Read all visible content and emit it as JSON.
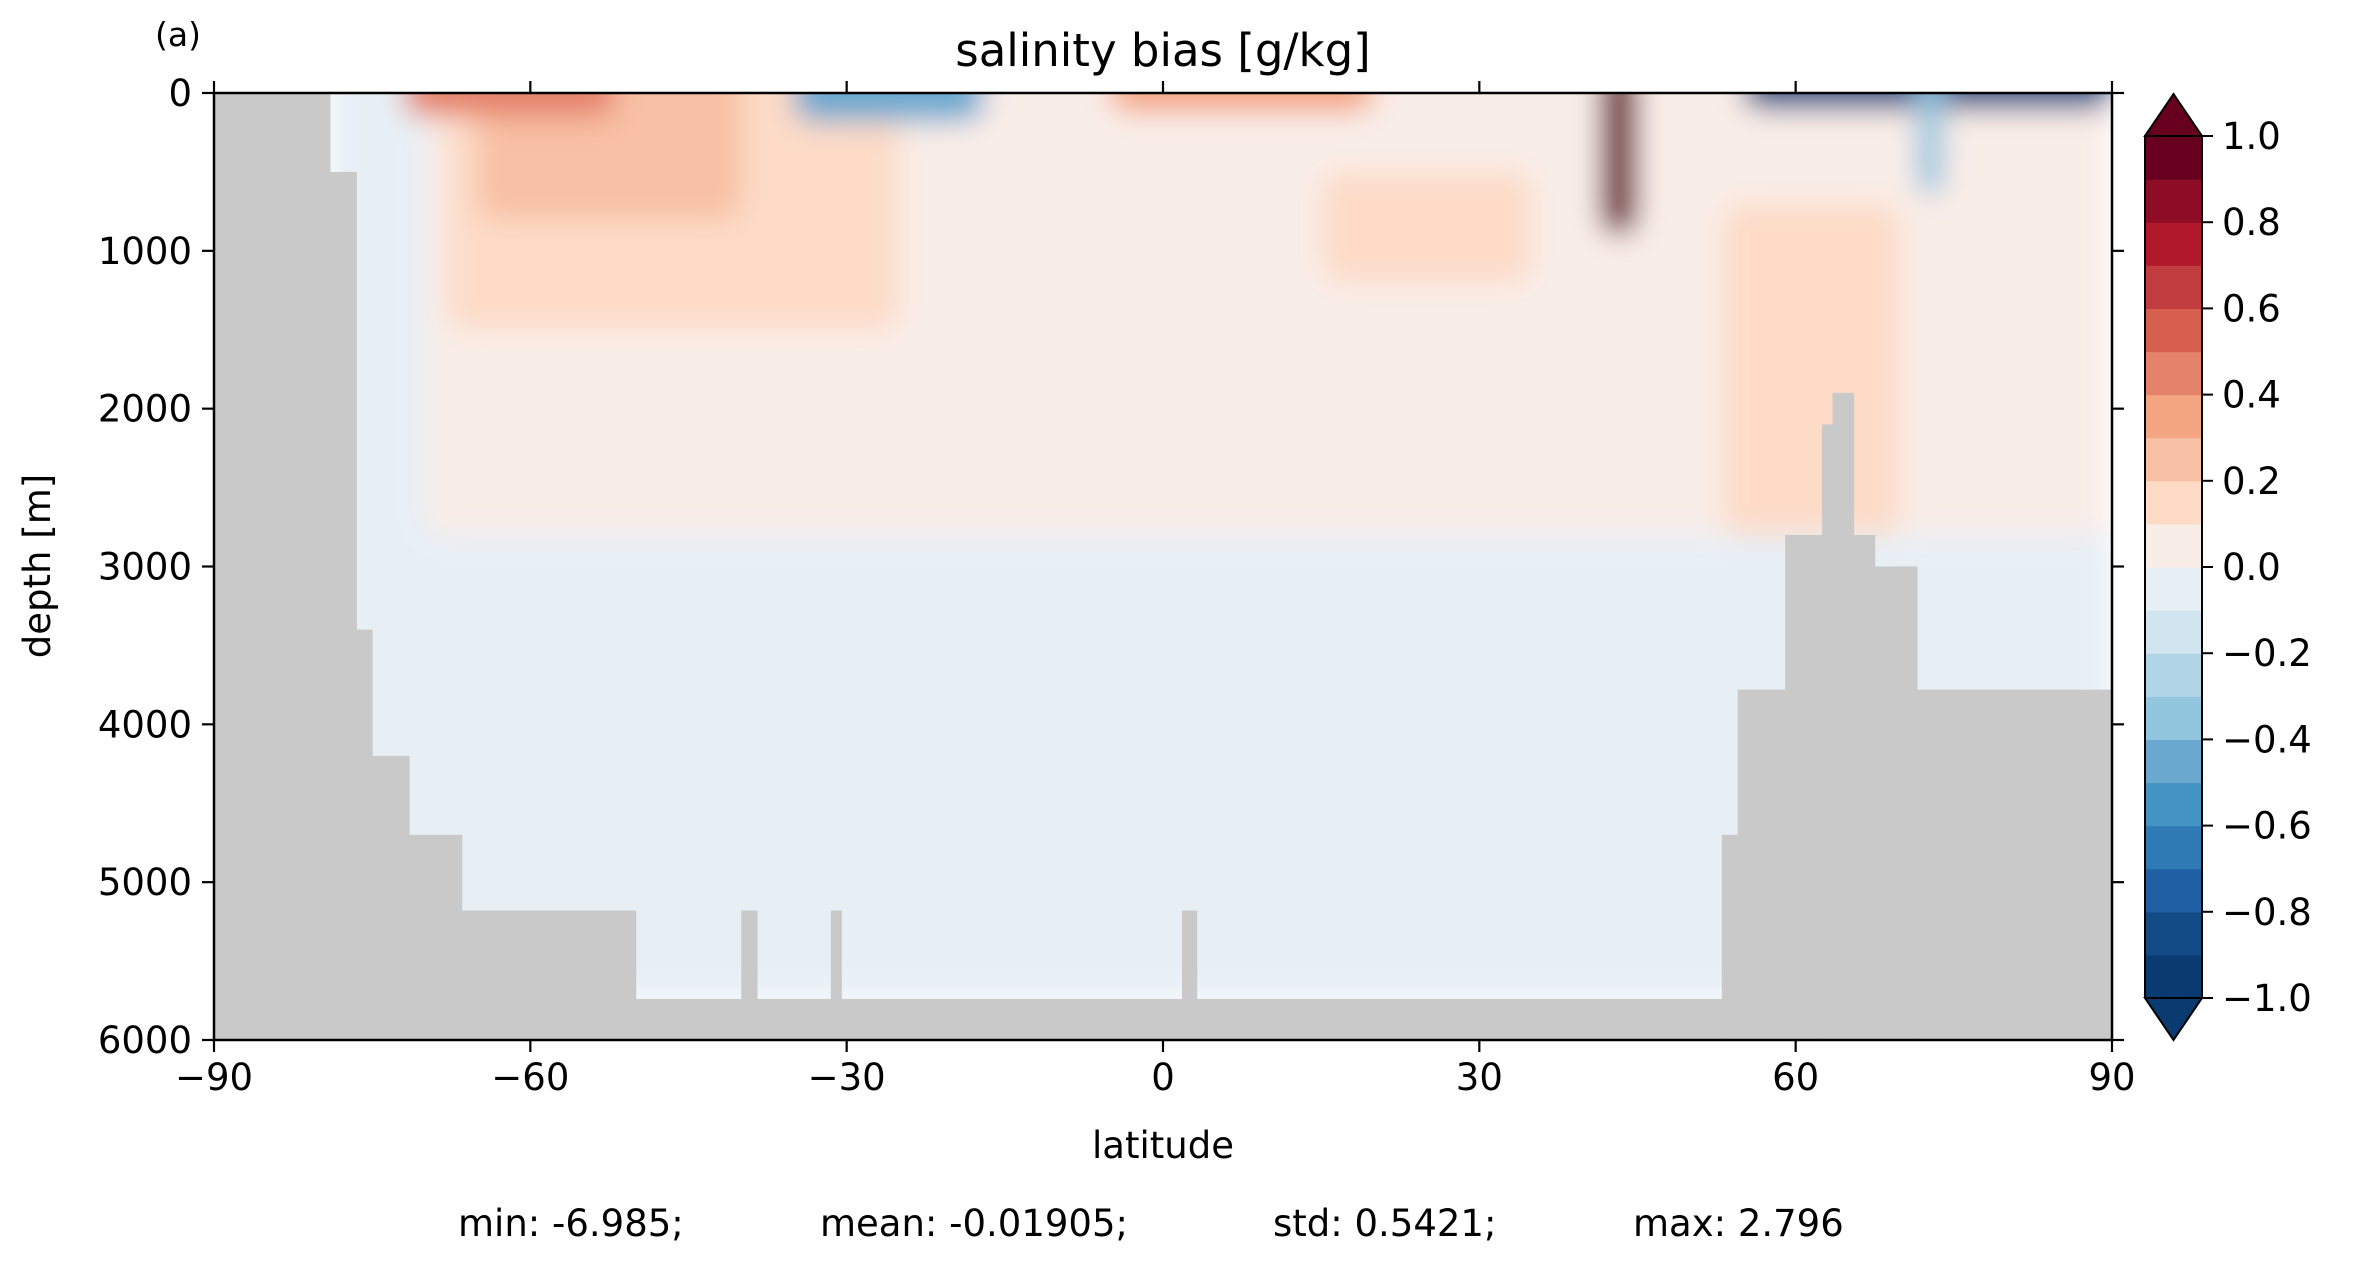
{
  "chart_data": {
    "type": "heatmap",
    "panel_label": "(a)",
    "title": "salinity bias [g/kg]",
    "xlabel": "latitude",
    "ylabel": "depth [m]",
    "xlim": [
      -90,
      90
    ],
    "ylim": [
      6000,
      0
    ],
    "x_ticks": [
      -90,
      -60,
      -30,
      0,
      30,
      60,
      90
    ],
    "x_tick_labels": [
      "−90",
      "−60",
      "−30",
      "0",
      "30",
      "60",
      "90"
    ],
    "y_ticks": [
      0,
      1000,
      2000,
      3000,
      4000,
      5000,
      6000
    ],
    "y_tick_labels": [
      "0",
      "1000",
      "2000",
      "3000",
      "4000",
      "5000",
      "6000"
    ],
    "colorbar": {
      "colormap": "RdBu_r",
      "vmin": -1.0,
      "vmax": 1.0,
      "extend": "both",
      "levels": [
        -1.0,
        -0.9,
        -0.8,
        -0.7,
        -0.6,
        -0.5,
        -0.4,
        -0.3,
        -0.2,
        -0.1,
        0.0,
        0.1,
        0.2,
        0.3,
        0.4,
        0.5,
        0.6,
        0.7,
        0.8,
        0.9,
        1.0
      ],
      "tick_values": [
        -1.0,
        -0.8,
        -0.6,
        -0.4,
        -0.2,
        0.0,
        0.2,
        0.4,
        0.6,
        0.8,
        1.0
      ],
      "tick_labels": [
        "−1.0",
        "−0.8",
        "−0.6",
        "−0.4",
        "−0.2",
        "0.0",
        "0.2",
        "0.4",
        "0.6",
        "0.8",
        "1.0"
      ],
      "colors": [
        "#0a3b70",
        "#134b87",
        "#1f5fa3",
        "#2f79b5",
        "#4393c3",
        "#6aa8d0",
        "#92c5de",
        "#b1d5e7",
        "#d1e5f0",
        "#e7eff5",
        "#f9ede8",
        "#fddbc7",
        "#f8c0a4",
        "#f4a582",
        "#e5826a",
        "#d6604d",
        "#c13c3f",
        "#b2182b",
        "#8e0c25",
        "#67001f"
      ]
    },
    "land_mask": {
      "color": "#c9c9c9",
      "segments": [
        {
          "lat": [
            -90,
            -79
          ],
          "top_depth": 0
        },
        {
          "lat": [
            -79,
            -76.5
          ],
          "top_depth": 500
        },
        {
          "lat": [
            -76.5,
            -75
          ],
          "top_depth": 3400
        },
        {
          "lat": [
            -75,
            -71.5
          ],
          "top_depth": 4200
        },
        {
          "lat": [
            -71.5,
            -66.5
          ],
          "top_depth": 4700
        },
        {
          "lat": [
            -66.5,
            -50
          ],
          "top_depth": 5180
        },
        {
          "lat": [
            -50,
            53
          ],
          "top_depth": 5740
        },
        {
          "lat": [
            53,
            54.5
          ],
          "top_depth": 4700
        },
        {
          "lat": [
            54.5,
            59
          ],
          "top_depth": 3780
        },
        {
          "lat": [
            59,
            62.5
          ],
          "top_depth": 2800
        },
        {
          "lat": [
            62.5,
            63.5
          ],
          "top_depth": 2100
        },
        {
          "lat": [
            63.5,
            65.5
          ],
          "top_depth": 1900
        },
        {
          "lat": [
            65.5,
            67.5
          ],
          "top_depth": 2800
        },
        {
          "lat": [
            67.5,
            71.5
          ],
          "top_depth": 3000
        },
        {
          "lat": [
            71.5,
            90
          ],
          "top_depth": 3780
        }
      ],
      "ridges": [
        {
          "lat": [
            -40,
            -38.5
          ],
          "top_depth": 5180
        },
        {
          "lat": [
            -31.5,
            -30.5
          ],
          "top_depth": 5180
        },
        {
          "lat": [
            1.8,
            3.2
          ],
          "top_depth": 5180
        }
      ]
    },
    "bias_regions": [
      {
        "value": -0.05,
        "lat": [
          -79,
          90
        ],
        "depth": [
          0,
          5740
        ],
        "note": "background"
      },
      {
        "value": 0.05,
        "lat": [
          -70,
          90
        ],
        "depth": [
          0,
          2800
        ]
      },
      {
        "value": 0.15,
        "lat": [
          -68,
          -25
        ],
        "depth": [
          0,
          1500
        ]
      },
      {
        "value": 0.25,
        "lat": [
          -65,
          -40
        ],
        "depth": [
          0,
          800
        ]
      },
      {
        "value": 0.45,
        "lat": [
          -72,
          -52
        ],
        "depth": [
          0,
          150
        ]
      },
      {
        "value": 0.3,
        "lat": [
          -5,
          20
        ],
        "depth": [
          0,
          120
        ]
      },
      {
        "value": -0.45,
        "lat": [
          -35,
          -17
        ],
        "depth": [
          0,
          180
        ]
      },
      {
        "value": 0.15,
        "lat": [
          15,
          35
        ],
        "depth": [
          500,
          1200
        ]
      },
      {
        "value": 0.15,
        "lat": [
          53,
          70
        ],
        "depth": [
          700,
          2800
        ]
      },
      {
        "value": 1.2,
        "lat": [
          41.5,
          45
        ],
        "depth": [
          0,
          900
        ]
      },
      {
        "value": -0.8,
        "lat": [
          55,
          90
        ],
        "depth": [
          0,
          100
        ]
      },
      {
        "value": -0.4,
        "lat": [
          71.5,
          74
        ],
        "depth": [
          0,
          650
        ]
      }
    ],
    "stats": {
      "min": "min: -6.985;",
      "mean": "mean: -0.01905;",
      "std": "std: 0.5421;",
      "max": "max: 2.796"
    }
  }
}
